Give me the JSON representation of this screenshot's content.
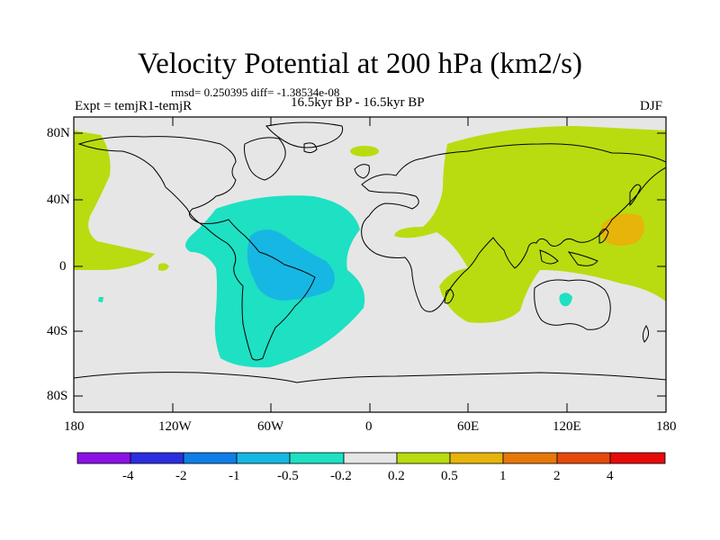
{
  "title": "Velocity Potential at 200 hPa (km2/s)",
  "stats": "rmsd= 0.250395 diff= -1.38534e-08",
  "expt": "Expt = temjR1-temjR",
  "period": "16.5kyr BP - 16.5kyr BP",
  "season": "DJF",
  "lat_labels": [
    "80N",
    "40N",
    "0",
    "40S",
    "80S"
  ],
  "lon_labels": [
    "180",
    "120W",
    "60W",
    "0",
    "60E",
    "120E",
    "180"
  ],
  "colorbar": {
    "labels": [
      "-4",
      "-2",
      "-1",
      "-0.5",
      "-0.2",
      "0.2",
      "0.5",
      "1",
      "2",
      "4"
    ],
    "colors": [
      "#8a12e6",
      "#2b2ee0",
      "#0f7ee6",
      "#17b7e3",
      "#1ee0c3",
      "#e6e6e6",
      "#b8dc10",
      "#e6b40a",
      "#e6780a",
      "#e64a0a",
      "#e60a0a"
    ]
  },
  "field_colors": {
    "background": "#e6e6e6",
    "positive_weak": "#b8dc10",
    "positive_mid": "#e6b40a",
    "negative_weak": "#1ee0c3",
    "negative_mid": "#17b7e3"
  }
}
